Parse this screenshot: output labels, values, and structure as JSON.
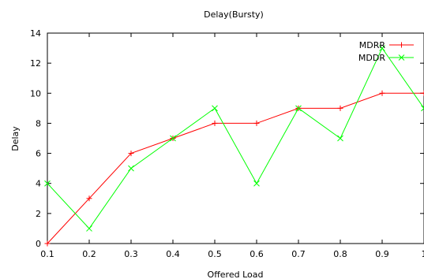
{
  "chart_data": {
    "type": "line",
    "title": "Delay(Bursty)",
    "xlabel": "Offered Load",
    "ylabel": "Delay",
    "x": [
      0.1,
      0.2,
      0.3,
      0.4,
      0.5,
      0.6,
      0.7,
      0.8,
      0.9,
      1.0
    ],
    "x_ticks": [
      "0.1",
      "0.2",
      "0.3",
      "0.4",
      "0.5",
      "0.6",
      "0.7",
      "0.8",
      "0.9",
      "1"
    ],
    "y_ticks": [
      0,
      2,
      4,
      6,
      8,
      10,
      12,
      14
    ],
    "xlim": [
      0.1,
      1.0
    ],
    "ylim": [
      0,
      14
    ],
    "grid": false,
    "legend_position": "top-right",
    "series": [
      {
        "name": "MDRR",
        "color": "#ff0000",
        "marker": "plus",
        "values": [
          0,
          3,
          6,
          7,
          8,
          8,
          9,
          9,
          10,
          10
        ]
      },
      {
        "name": "MDDR",
        "color": "#00ff00",
        "marker": "cross",
        "values": [
          4,
          1,
          5,
          7,
          9,
          4,
          9,
          7,
          13,
          9
        ]
      }
    ]
  }
}
